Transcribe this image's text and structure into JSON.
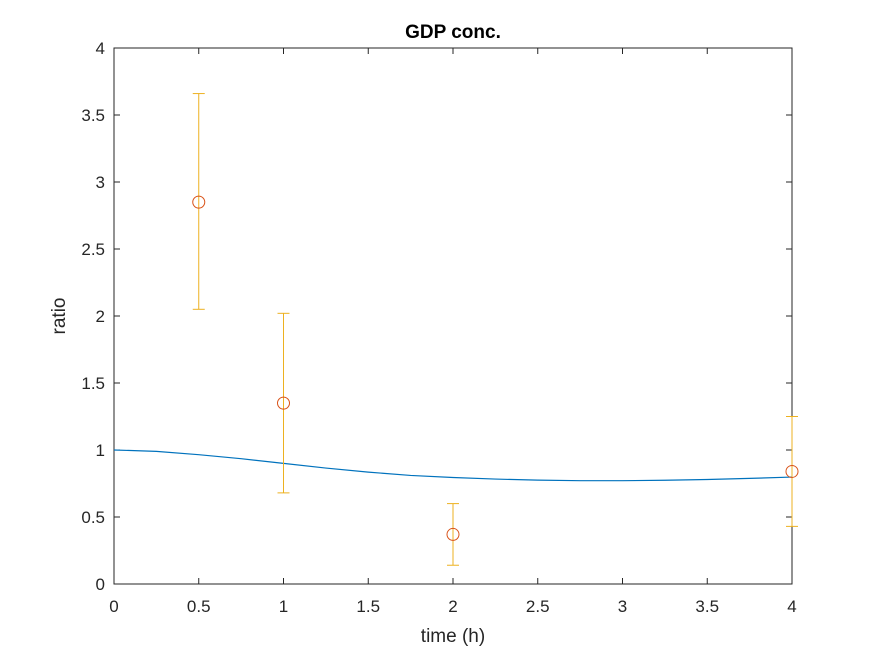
{
  "chart_data": {
    "type": "line",
    "title": "GDP conc.",
    "xlabel": "time (h)",
    "ylabel": "ratio",
    "xlim": [
      0,
      4
    ],
    "ylim": [
      0,
      4
    ],
    "x_ticks": [
      "0",
      "0.5",
      "1",
      "1.5",
      "2",
      "2.5",
      "3",
      "3.5",
      "4"
    ],
    "x_tick_values": [
      0,
      0.5,
      1,
      1.5,
      2,
      2.5,
      3,
      3.5,
      4
    ],
    "y_ticks": [
      "0",
      "0.5",
      "1",
      "1.5",
      "2",
      "2.5",
      "3",
      "3.5",
      "4"
    ],
    "y_tick_values": [
      0,
      0.5,
      1,
      1.5,
      2,
      2.5,
      3,
      3.5,
      4
    ],
    "grid": false,
    "box": true,
    "series": [
      {
        "kind": "line",
        "color": "#0072bd",
        "x": [
          0,
          0.25,
          0.5,
          0.75,
          1,
          1.25,
          1.5,
          1.75,
          2,
          2.25,
          2.5,
          2.75,
          3,
          3.25,
          3.5,
          3.75,
          4
        ],
        "y": [
          1.0,
          0.99,
          0.965,
          0.935,
          0.9,
          0.865,
          0.835,
          0.81,
          0.795,
          0.783,
          0.775,
          0.771,
          0.771,
          0.774,
          0.78,
          0.788,
          0.798
        ]
      },
      {
        "kind": "errorbar",
        "marker": "circle",
        "marker_color": "#d95319",
        "errorbar_color": "#edb120",
        "x": [
          0.5,
          1,
          2,
          4
        ],
        "y": [
          2.85,
          1.35,
          0.37,
          0.84
        ],
        "lower": [
          2.05,
          0.68,
          0.14,
          0.43
        ],
        "upper": [
          3.66,
          2.02,
          0.6,
          1.25
        ]
      }
    ]
  }
}
